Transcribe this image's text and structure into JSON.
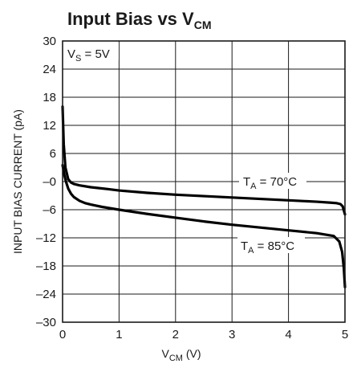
{
  "chart_data": {
    "type": "line",
    "title": {
      "main": "Input Bias vs V",
      "sub": "CM"
    },
    "xlabel": {
      "main": "V",
      "sub": "CM",
      "suffix": " (V)"
    },
    "ylabel": "INPUT BIAS CURRENT (pA)",
    "condition": {
      "main": "V",
      "sub": "S",
      "suffix": " = 5V"
    },
    "xlim": [
      0,
      5
    ],
    "ylim": [
      -30,
      30
    ],
    "x_ticks": [
      "0",
      "1",
      "2",
      "3",
      "4",
      "5"
    ],
    "x_tick_values": [
      0,
      1,
      2,
      3,
      4,
      5
    ],
    "y_ticks": [
      "30",
      "24",
      "18",
      "12",
      "6",
      "–0",
      "–6",
      "–12",
      "–18",
      "–24",
      "–30"
    ],
    "y_tick_values": [
      30,
      24,
      18,
      12,
      6,
      0,
      -6,
      -12,
      -18,
      -24,
      -30
    ],
    "grid": true,
    "series": [
      {
        "label": {
          "main": "T",
          "sub": "A",
          "suffix": " = 70°C"
        },
        "x": [
          0,
          0.02,
          0.05,
          0.1,
          0.15,
          0.2,
          0.3,
          0.5,
          0.8,
          1.0,
          1.5,
          2.0,
          2.5,
          3.0,
          3.5,
          4.0,
          4.5,
          4.75,
          4.85,
          4.92,
          4.96,
          5.0
        ],
        "y": [
          16,
          8,
          3,
          0.5,
          -0.2,
          -0.5,
          -0.8,
          -1.2,
          -1.6,
          -1.9,
          -2.4,
          -2.8,
          -3.1,
          -3.4,
          -3.7,
          -4.0,
          -4.3,
          -4.5,
          -4.6,
          -4.8,
          -5.3,
          -7.0
        ]
      },
      {
        "label": {
          "main": "T",
          "sub": "A",
          "suffix": " = 85°C"
        },
        "x": [
          0,
          0.03,
          0.06,
          0.1,
          0.15,
          0.2,
          0.3,
          0.4,
          0.5,
          0.7,
          1.0,
          1.5,
          2.0,
          2.5,
          3.0,
          3.5,
          4.0,
          4.5,
          4.8,
          4.9,
          4.95,
          4.98,
          5.0
        ],
        "y": [
          3.5,
          1.5,
          0,
          -1.5,
          -2.6,
          -3.3,
          -4.1,
          -4.6,
          -4.9,
          -5.4,
          -6.0,
          -6.9,
          -7.7,
          -8.5,
          -9.2,
          -9.8,
          -10.4,
          -11.0,
          -11.6,
          -12.8,
          -15.0,
          -18.5,
          -22.5
        ]
      }
    ]
  }
}
